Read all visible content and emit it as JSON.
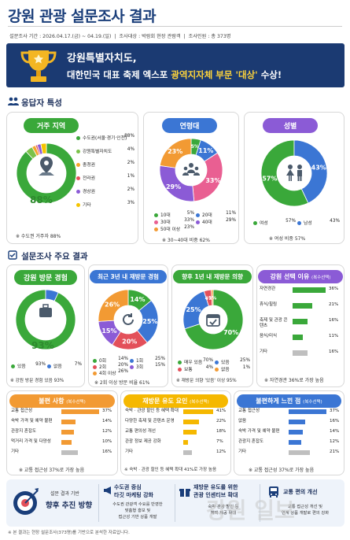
{
  "header": {
    "title": "강원 관광 설문조사 결과",
    "period": "설문조사 기간 : 2026.04.17.(금) ~ 04.19.(일)",
    "target": "조사대상 : 박람회 현장 관람객",
    "count": "조사인원 : 총 373명"
  },
  "banner": {
    "line1": "강원특별자치도,",
    "line2a": "대한민국 대표 축제 엑스포 ",
    "line2b": "광역지자체 부문 '대상'",
    "line2c": " 수상!"
  },
  "sections": {
    "respondents": "응답자 특성",
    "results": "설문조사 주요 결과"
  },
  "chart_data": [
    {
      "type": "pie",
      "title": "거주 지역",
      "categories": [
        "수도권(서울·경기·인천)",
        "강원특별자치도",
        "충청권",
        "전라권",
        "경상권",
        "기타"
      ],
      "values": [
        88,
        4,
        2,
        1,
        2,
        3
      ],
      "center_label": "88%",
      "colors": [
        "#3aa83a",
        "#7bc24a",
        "#f4a62a",
        "#e3505a",
        "#8b5bd6",
        "#f5c400"
      ],
      "legend_values": [
        "88%",
        "4%",
        "2%",
        "1%",
        "2%",
        "3%"
      ],
      "note": "※ 수도권 거주자 88%"
    },
    {
      "type": "pie",
      "title": "연령대",
      "categories": [
        "10대",
        "20대",
        "30대",
        "40대",
        "50대 이상"
      ],
      "values": [
        5,
        11,
        33,
        29,
        23
      ],
      "colors": [
        "#3aa83a",
        "#3b76d4",
        "#e95f92",
        "#8b5bd6",
        "#f29a33"
      ],
      "legend_values": [
        "5%",
        "11%",
        "33%",
        "29%",
        "23%"
      ],
      "slice_labels": [
        "5%",
        "11%",
        "33%",
        "29%",
        "23%"
      ],
      "note": "※ 30~40대 비중 62%"
    },
    {
      "type": "pie",
      "title": "성별",
      "categories": [
        "여성",
        "남성"
      ],
      "values": [
        57,
        43
      ],
      "colors": [
        "#3aa83a",
        "#3b76d4"
      ],
      "legend_values": [
        "57%",
        "43%"
      ],
      "slice_labels": [
        "57%",
        "43%"
      ],
      "note": "※ 여성 비중 57%"
    },
    {
      "type": "pie",
      "title": "강원 방문 경험",
      "categories": [
        "있음",
        "없음"
      ],
      "values": [
        93,
        7
      ],
      "center_label": "93%",
      "colors": [
        "#3aa83a",
        "#3b76d4"
      ],
      "legend_values": [
        "93%",
        "7%"
      ],
      "note": "※ 강원 방문 경험 있음 93%"
    },
    {
      "type": "pie",
      "title": "최근 3년 내 재방문 경험",
      "categories": [
        "0회",
        "1회",
        "2회",
        "3회",
        "4회 이상"
      ],
      "values": [
        14,
        25,
        20,
        15,
        26
      ],
      "colors": [
        "#3aa83a",
        "#3b76d4",
        "#e3505a",
        "#8b5bd6",
        "#f29a33"
      ],
      "legend_values": [
        "14%",
        "25%",
        "20%",
        "15%",
        "26%"
      ],
      "slice_labels": [
        "14%",
        "25%",
        "20%",
        "15%",
        "26%"
      ],
      "note": "※ 2회 이상 방문 비율 61%"
    },
    {
      "type": "pie",
      "title": "향후 1년 내 재방문 의향",
      "categories": [
        "매우 있음",
        "있음",
        "보통",
        "없음"
      ],
      "values": [
        70,
        25,
        4,
        1
      ],
      "colors": [
        "#3aa83a",
        "#3b76d4",
        "#e3505a",
        "#f29a33"
      ],
      "legend_values": [
        "70%",
        "25%",
        "4%",
        "1%"
      ],
      "slice_labels": [
        "70%",
        "25%",
        "4%",
        "1%"
      ],
      "note": "※ 재방문 의향 '있음' 이상 95%"
    },
    {
      "type": "bar",
      "title": "강원 선택 이유",
      "title_suffix": "(복수선택)",
      "categories": [
        "자연경관",
        "휴식/힐링",
        "축제 및 관광 콘텐츠",
        "음식/미식",
        "기타"
      ],
      "values": [
        36,
        21,
        16,
        11,
        16
      ],
      "color": "#3aa83a",
      "note": "※ 자연경관 36%로 가장 높음"
    },
    {
      "type": "bar",
      "title": "불편 사항",
      "title_suffix": "(복수선택)",
      "categories": [
        "교통 접근성",
        "숙박 가격 및 예약 불편",
        "관광지 혼잡도",
        "먹거리 가격 및 다양성",
        "기타"
      ],
      "values": [
        37,
        14,
        12,
        10,
        16
      ],
      "color": "#f29a33",
      "note": "※ 교통 접근성 37%로 가장 높음"
    },
    {
      "type": "bar",
      "title": "재방문 유도 요인",
      "title_suffix": "(복수선택)",
      "categories": [
        "숙박 · 관광 할인 등 혜택 확대",
        "다양한 축제 및 콘텐츠 운영",
        "교통 편의성 개선",
        "관광 정보 제공 강화",
        "기타"
      ],
      "values": [
        41,
        22,
        18,
        7,
        12
      ],
      "color": "#f5b800",
      "note": "※ 숙박 · 관광 할인 등 혜택 확대 41%로 가장 높음"
    },
    {
      "type": "bar",
      "title": "불편하게 느낀 점",
      "title_suffix": "(복수선택)",
      "categories": [
        "교통 접근성",
        "없음",
        "숙박 가격 및 예약 불편",
        "관광지 혼잡도",
        "기타"
      ],
      "values": [
        37,
        16,
        14,
        12,
        21
      ],
      "color": "#3b76d4",
      "note": "※ 교통 접근성 37%로 가장 높음"
    }
  ],
  "bottom": {
    "caption": "설문 결과 기반",
    "heading": "향후 추진 방향",
    "b1_title": "수도권 중심",
    "b1_title2": "타깃 마케팅 강화",
    "b1_desc1": "수도권 관광객 수요를 반영한",
    "b1_desc2": "맞춤형 홍보 및",
    "b1_desc3": "접근성 기반 상품 개발",
    "b2_title": "재방문 유도를 위한",
    "b2_title2": "관광 인센티브 확대",
    "b2_desc1": "숙박·관광 할인 등",
    "b2_desc2": "혜택 제공 확대",
    "b3_title": "교통 편의 개선",
    "b3_desc1": "교통 접근성 개선 및",
    "b3_desc2": "연계 상품 개발로 편의 강화"
  },
  "watermark": "강원 일보",
  "footer": "※ 본 결과는 현장 설문조사(373명)를 기반으로 분석한 자료입니다."
}
